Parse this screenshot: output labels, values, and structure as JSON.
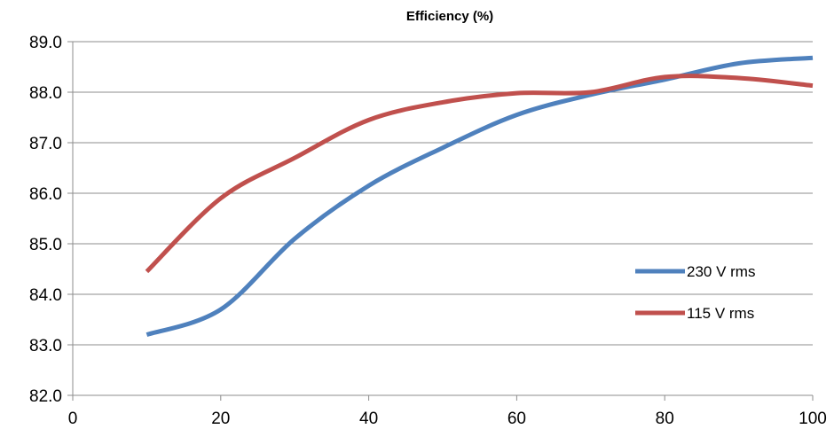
{
  "chart_data": {
    "type": "line",
    "title": "Efficiency (%)",
    "xlabel": "",
    "ylabel": "",
    "xlim": [
      0,
      100
    ],
    "ylim": [
      82.0,
      89.0
    ],
    "x_ticks": [
      "0",
      "20",
      "40",
      "60",
      "80",
      "100"
    ],
    "x_tick_values": [
      0,
      20,
      40,
      60,
      80,
      100
    ],
    "y_ticks": [
      "82.0",
      "83.0",
      "84.0",
      "85.0",
      "86.0",
      "87.0",
      "88.0",
      "89.0"
    ],
    "y_tick_values": [
      82.0,
      83.0,
      84.0,
      85.0,
      86.0,
      87.0,
      88.0,
      89.0
    ],
    "grid": true,
    "legend_position": "right",
    "series": [
      {
        "name": "230 V rms",
        "color": "#4f81bd",
        "x": [
          10,
          20,
          30,
          40,
          50,
          60,
          70,
          80,
          90,
          100
        ],
        "y": [
          83.2,
          83.7,
          85.1,
          86.15,
          86.9,
          87.55,
          87.95,
          88.25,
          88.57,
          88.68
        ]
      },
      {
        "name": "115 V rms",
        "color": "#c0504d",
        "x": [
          10,
          20,
          30,
          40,
          50,
          60,
          70,
          80,
          90,
          100
        ],
        "y": [
          84.45,
          85.9,
          86.7,
          87.45,
          87.8,
          87.98,
          88.0,
          88.3,
          88.28,
          88.13
        ]
      }
    ]
  }
}
